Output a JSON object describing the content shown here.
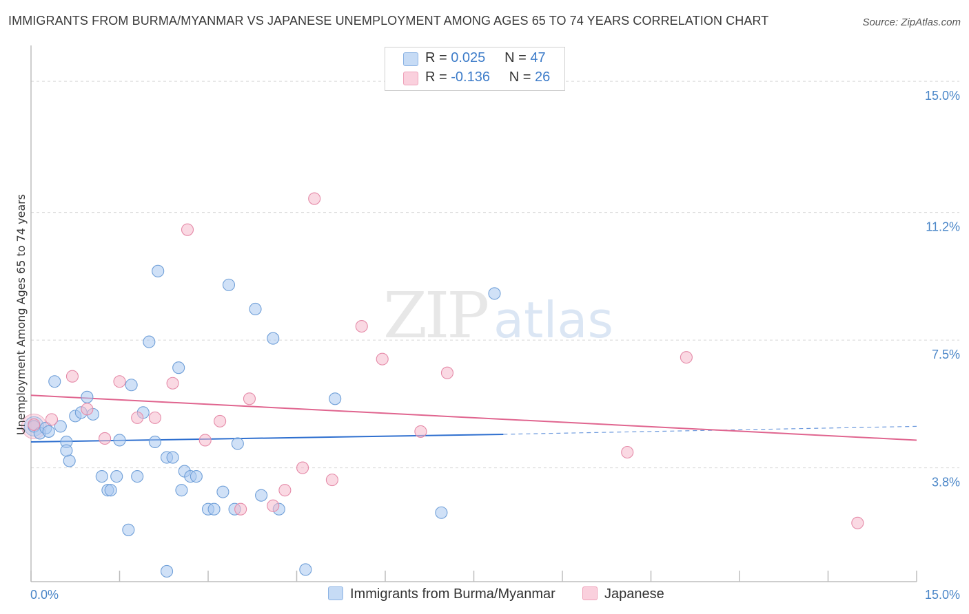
{
  "title": "IMMIGRANTS FROM BURMA/MYANMAR VS JAPANESE UNEMPLOYMENT AMONG AGES 65 TO 74 YEARS CORRELATION CHART",
  "source": "Source: ZipAtlas.com",
  "watermark": {
    "zip": "ZIP",
    "atlas": "atlas"
  },
  "legend": {
    "rows": [
      {
        "r_label": "R =",
        "r_value": "0.025",
        "n_label": "N =",
        "n_value": "47",
        "color": "#a9c9f0"
      },
      {
        "r_label": "R =",
        "r_value": "-0.136",
        "n_label": "N =",
        "n_value": "26",
        "color": "#f6b9cc"
      }
    ]
  },
  "bottom_legend": {
    "series1": "Immigrants from Burma/Myanmar",
    "series2": "Japanese"
  },
  "colors": {
    "blue_fill": "#a9c9f0",
    "blue_stroke": "#6f9fd8",
    "blue_line": "#2e6fcf",
    "pink_fill": "#f6b9cc",
    "pink_stroke": "#e58aa8",
    "pink_line": "#e0658f",
    "tick_text": "#4a86c8",
    "grid": "#d8d8d8"
  },
  "chart_data": {
    "type": "scatter",
    "title": "IMMIGRANTS FROM BURMA/MYANMAR VS JAPANESE UNEMPLOYMENT AMONG AGES 65 TO 74 YEARS CORRELATION CHART",
    "xlabel": "",
    "ylabel": "Unemployment Among Ages 65 to 74 years",
    "xlim": [
      0,
      15
    ],
    "ylim": [
      0.5,
      15.8
    ],
    "x_tick_labels": [
      "0.0%",
      "15.0%"
    ],
    "y_ticks": [
      3.8,
      7.5,
      11.2,
      15.0
    ],
    "y_tick_labels": [
      "3.8%",
      "7.5%",
      "11.2%",
      "15.0%"
    ],
    "grid": true,
    "legend_position": "top-center",
    "series": [
      {
        "name": "Immigrants from Burma/Myanmar",
        "color": "#a9c9f0",
        "trend": {
          "x": [
            0.0,
            8.0
          ],
          "y": [
            4.55,
            4.77
          ],
          "dashed_to": [
            15.0,
            5.0
          ]
        },
        "points": [
          [
            0.05,
            5.0
          ],
          [
            0.15,
            4.8
          ],
          [
            0.25,
            4.95
          ],
          [
            0.3,
            4.85
          ],
          [
            0.4,
            6.3
          ],
          [
            0.5,
            5.0
          ],
          [
            0.6,
            4.55
          ],
          [
            0.65,
            4.0
          ],
          [
            0.75,
            5.3
          ],
          [
            0.85,
            5.4
          ],
          [
            0.95,
            5.85
          ],
          [
            1.05,
            5.35
          ],
          [
            1.2,
            3.55
          ],
          [
            1.3,
            3.15
          ],
          [
            1.35,
            3.15
          ],
          [
            1.45,
            3.55
          ],
          [
            1.5,
            4.6
          ],
          [
            1.65,
            2.0
          ],
          [
            1.7,
            6.2
          ],
          [
            1.8,
            3.55
          ],
          [
            1.9,
            5.4
          ],
          [
            2.0,
            7.45
          ],
          [
            2.1,
            4.55
          ],
          [
            2.15,
            9.5
          ],
          [
            2.3,
            4.1
          ],
          [
            2.3,
            0.8
          ],
          [
            2.4,
            4.1
          ],
          [
            2.5,
            6.7
          ],
          [
            2.55,
            3.15
          ],
          [
            2.6,
            3.7
          ],
          [
            2.7,
            3.55
          ],
          [
            2.8,
            3.55
          ],
          [
            3.0,
            2.6
          ],
          [
            3.1,
            2.6
          ],
          [
            3.25,
            3.1
          ],
          [
            3.35,
            9.1
          ],
          [
            3.45,
            2.6
          ],
          [
            3.5,
            4.5
          ],
          [
            3.8,
            8.4
          ],
          [
            3.9,
            3.0
          ],
          [
            4.1,
            7.55
          ],
          [
            4.2,
            2.6
          ],
          [
            4.65,
            0.85
          ],
          [
            5.15,
            5.8
          ],
          [
            6.95,
            2.5
          ],
          [
            7.85,
            8.85
          ],
          [
            0.6,
            4.3
          ]
        ]
      },
      {
        "name": "Japanese",
        "color": "#f6b9cc",
        "trend": {
          "x": [
            0.0,
            15.0
          ],
          "y": [
            5.9,
            4.6
          ]
        },
        "points": [
          [
            0.05,
            5.05
          ],
          [
            0.35,
            5.2
          ],
          [
            0.7,
            6.45
          ],
          [
            0.95,
            5.5
          ],
          [
            1.25,
            4.65
          ],
          [
            1.5,
            6.3
          ],
          [
            1.8,
            5.25
          ],
          [
            2.1,
            5.25
          ],
          [
            2.4,
            6.25
          ],
          [
            2.65,
            10.7
          ],
          [
            2.95,
            4.6
          ],
          [
            3.2,
            5.15
          ],
          [
            3.55,
            2.6
          ],
          [
            3.7,
            5.8
          ],
          [
            4.1,
            2.7
          ],
          [
            4.3,
            3.15
          ],
          [
            4.6,
            3.8
          ],
          [
            4.8,
            11.6
          ],
          [
            5.1,
            3.45
          ],
          [
            5.6,
            7.9
          ],
          [
            5.95,
            6.95
          ],
          [
            6.6,
            4.85
          ],
          [
            7.05,
            6.55
          ],
          [
            10.1,
            4.25
          ],
          [
            11.1,
            7.0
          ],
          [
            14.0,
            2.2
          ]
        ]
      }
    ]
  }
}
